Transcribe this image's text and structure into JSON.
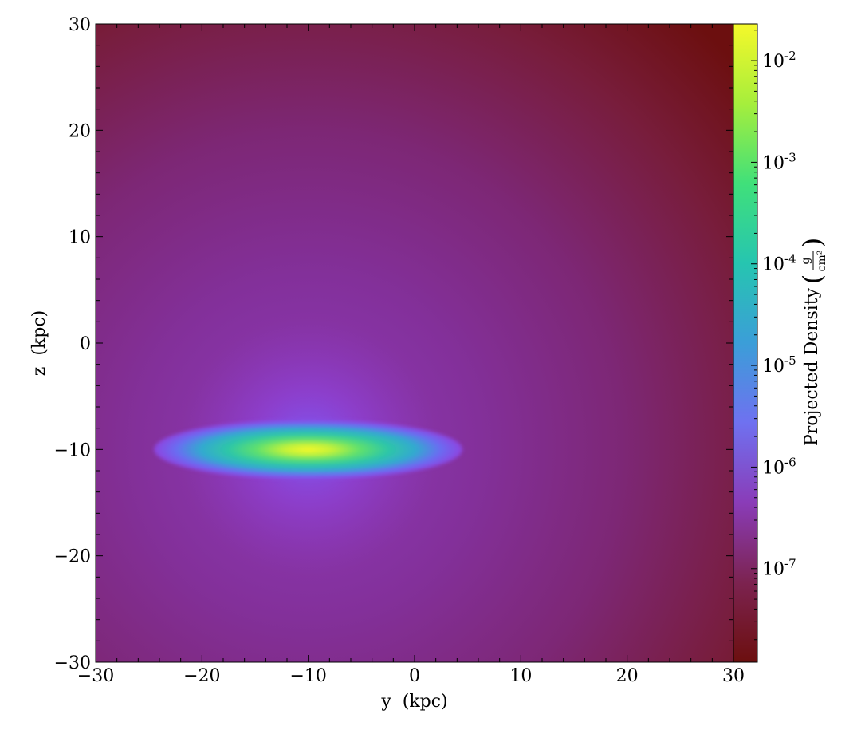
{
  "chart_data": {
    "type": "heatmap",
    "title": "",
    "xlabel": "y  (kpc)",
    "ylabel": "z  (kpc)",
    "xlim": [
      -30,
      30
    ],
    "ylim": [
      -30,
      30
    ],
    "x_ticks": [
      -30,
      -20,
      -10,
      0,
      10,
      20,
      30
    ],
    "y_ticks": [
      -30,
      -20,
      -10,
      0,
      10,
      20,
      30
    ],
    "x_tick_labels": [
      "−30",
      "−20",
      "−10",
      "0",
      "10",
      "20",
      "30"
    ],
    "y_tick_labels": [
      "−30",
      "−20",
      "−10",
      "0",
      "10",
      "20",
      "30"
    ],
    "grid": false,
    "colorbar": {
      "label": "Projected Density",
      "unit_numerator": "g",
      "unit_denominator": "cm²",
      "scale": "log",
      "range": [
        1.2e-08,
        0.023
      ],
      "ticks": [
        1e-07,
        1e-06,
        1e-05,
        0.0001,
        0.001,
        0.01
      ],
      "tick_labels": [
        {
          "base": "10",
          "exp": "-7"
        },
        {
          "base": "10",
          "exp": "-6"
        },
        {
          "base": "10",
          "exp": "-5"
        },
        {
          "base": "10",
          "exp": "-4"
        },
        {
          "base": "10",
          "exp": "-3"
        },
        {
          "base": "10",
          "exp": "-2"
        }
      ],
      "colormap": [
        "#6c0f0f",
        "#7c2350",
        "#8a3cb8",
        "#6f71f0",
        "#3b9ed8",
        "#26c5b0",
        "#40e07a",
        "#a6ee3c",
        "#f5f82a"
      ]
    },
    "features": [
      {
        "name": "disk",
        "center": [
          -10,
          -10
        ],
        "half_length": 14.5,
        "half_thickness": 2.8,
        "peak_density": 0.02
      },
      {
        "name": "halo",
        "center": [
          -10,
          -10
        ],
        "scale_kpc": 9,
        "background_density": 1.5e-08
      }
    ]
  }
}
